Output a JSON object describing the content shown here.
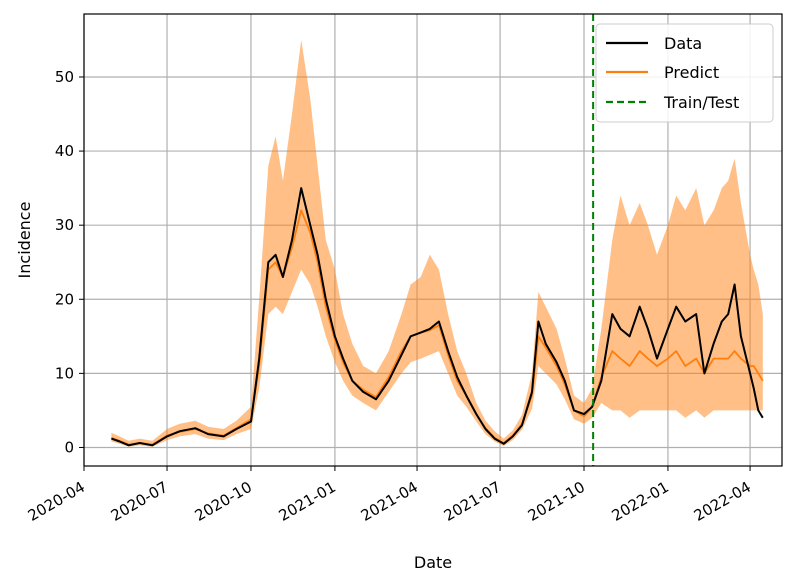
{
  "chart_data": {
    "type": "line",
    "title": "",
    "xlabel": "Date",
    "ylabel": "Incidence",
    "grid": true,
    "legend_position": "top-right",
    "ylim": [
      -2.5,
      58.5
    ],
    "xlim": [
      "2020-04-01",
      "2022-05-06"
    ],
    "x_ticks": [
      "2020-04",
      "2020-07",
      "2020-10",
      "2021-01",
      "2021-04",
      "2021-07",
      "2021-10",
      "2022-01",
      "2022-04"
    ],
    "x_tick_dates": [
      "2020-04-01",
      "2020-07-01",
      "2020-10-01",
      "2021-01-01",
      "2021-04-01",
      "2021-07-01",
      "2021-10-01",
      "2022-01-01",
      "2022-04-01"
    ],
    "y_ticks": [
      0,
      10,
      20,
      30,
      40,
      50
    ],
    "train_test_split": "2021-10-11",
    "series": [
      {
        "name": "Data",
        "color": "#000000",
        "style": "solid",
        "dates": [
          "2020-05-01",
          "2020-05-10",
          "2020-05-20",
          "2020-06-01",
          "2020-06-15",
          "2020-07-01",
          "2020-07-15",
          "2020-08-01",
          "2020-08-15",
          "2020-09-01",
          "2020-09-15",
          "2020-10-01",
          "2020-10-10",
          "2020-10-20",
          "2020-10-28",
          "2020-11-05",
          "2020-11-15",
          "2020-11-25",
          "2020-12-05",
          "2020-12-13",
          "2020-12-22",
          "2021-01-01",
          "2021-01-10",
          "2021-01-20",
          "2021-02-01",
          "2021-02-15",
          "2021-03-01",
          "2021-03-15",
          "2021-03-25",
          "2021-04-05",
          "2021-04-15",
          "2021-04-25",
          "2021-05-05",
          "2021-05-15",
          "2021-05-25",
          "2021-06-05",
          "2021-06-15",
          "2021-06-25",
          "2021-07-05",
          "2021-07-15",
          "2021-07-25",
          "2021-08-05",
          "2021-08-12",
          "2021-08-20",
          "2021-09-01",
          "2021-09-10",
          "2021-09-20",
          "2021-10-01",
          "2021-10-10",
          "2021-10-20",
          "2021-11-01",
          "2021-11-10",
          "2021-11-20",
          "2021-12-01",
          "2021-12-10",
          "2021-12-20",
          "2022-01-01",
          "2022-01-10",
          "2022-01-20",
          "2022-02-01",
          "2022-02-10",
          "2022-02-20",
          "2022-03-01",
          "2022-03-08",
          "2022-03-15",
          "2022-03-22",
          "2022-04-01",
          "2022-04-05",
          "2022-04-10",
          "2022-04-15"
        ],
        "values": [
          1.2,
          0.8,
          0.3,
          0.6,
          0.3,
          1.5,
          2.2,
          2.6,
          1.8,
          1.5,
          2.5,
          3.5,
          12,
          25,
          26,
          23,
          28,
          35,
          30,
          26,
          20,
          15,
          12,
          9,
          7.5,
          6.5,
          9,
          12.5,
          15,
          15.5,
          16,
          17,
          13,
          9.5,
          7,
          4.5,
          2.5,
          1.2,
          0.5,
          1.5,
          3,
          7.5,
          17,
          14,
          11.5,
          9,
          5,
          4.5,
          5.5,
          9,
          18,
          16,
          15,
          19,
          16,
          12,
          16,
          19,
          17,
          18,
          10,
          14,
          17,
          18,
          22,
          15,
          10,
          8,
          5,
          4
        ]
      },
      {
        "name": "Predict",
        "color": "#ff7f0e",
        "style": "solid",
        "dates": [
          "2020-05-01",
          "2020-05-10",
          "2020-05-20",
          "2020-06-01",
          "2020-06-15",
          "2020-07-01",
          "2020-07-15",
          "2020-08-01",
          "2020-08-15",
          "2020-09-01",
          "2020-09-15",
          "2020-10-01",
          "2020-10-10",
          "2020-10-20",
          "2020-10-28",
          "2020-11-05",
          "2020-11-15",
          "2020-11-25",
          "2020-12-05",
          "2020-12-13",
          "2020-12-22",
          "2021-01-01",
          "2021-01-10",
          "2021-01-20",
          "2021-02-01",
          "2021-02-15",
          "2021-03-01",
          "2021-03-15",
          "2021-03-25",
          "2021-04-05",
          "2021-04-15",
          "2021-04-25",
          "2021-05-05",
          "2021-05-15",
          "2021-05-25",
          "2021-06-05",
          "2021-06-15",
          "2021-06-25",
          "2021-07-05",
          "2021-07-15",
          "2021-07-25",
          "2021-08-05",
          "2021-08-12",
          "2021-08-20",
          "2021-09-01",
          "2021-09-10",
          "2021-09-20",
          "2021-10-01",
          "2021-10-10",
          "2021-10-20",
          "2021-11-01",
          "2021-11-10",
          "2021-11-20",
          "2021-12-01",
          "2021-12-10",
          "2021-12-20",
          "2022-01-01",
          "2022-01-10",
          "2022-01-20",
          "2022-02-01",
          "2022-02-10",
          "2022-02-20",
          "2022-03-01",
          "2022-03-08",
          "2022-03-15",
          "2022-03-22",
          "2022-04-01",
          "2022-04-05",
          "2022-04-10",
          "2022-04-15"
        ],
        "values": [
          1.3,
          0.9,
          0.4,
          0.6,
          0.4,
          1.6,
          2.1,
          2.5,
          1.9,
          1.6,
          2.6,
          3.8,
          11,
          24,
          25,
          23,
          27,
          32,
          29,
          25,
          19,
          14.5,
          11.5,
          9,
          7.8,
          6.8,
          9.5,
          13,
          15,
          15.5,
          15.8,
          16.5,
          12.5,
          9,
          7,
          4.5,
          2.6,
          1.3,
          0.6,
          1.6,
          3.2,
          7,
          15,
          13.5,
          11,
          8.5,
          5,
          4.2,
          5.5,
          9.5,
          13,
          12,
          11,
          13,
          12,
          11,
          12,
          13,
          11,
          12,
          10,
          12,
          12,
          12,
          13,
          12,
          11,
          11,
          10,
          9
        ]
      }
    ],
    "prediction_band": {
      "name": "Predict range",
      "dates": [
        "2020-05-01",
        "2020-05-10",
        "2020-05-20",
        "2020-06-01",
        "2020-06-15",
        "2020-07-01",
        "2020-07-15",
        "2020-08-01",
        "2020-08-15",
        "2020-09-01",
        "2020-09-15",
        "2020-10-01",
        "2020-10-10",
        "2020-10-20",
        "2020-10-28",
        "2020-11-05",
        "2020-11-15",
        "2020-11-25",
        "2020-12-05",
        "2020-12-13",
        "2020-12-22",
        "2021-01-01",
        "2021-01-10",
        "2021-01-20",
        "2021-02-01",
        "2021-02-15",
        "2021-03-01",
        "2021-03-15",
        "2021-03-25",
        "2021-04-05",
        "2021-04-15",
        "2021-04-25",
        "2021-05-05",
        "2021-05-15",
        "2021-05-25",
        "2021-06-05",
        "2021-06-15",
        "2021-06-25",
        "2021-07-05",
        "2021-07-15",
        "2021-07-25",
        "2021-08-05",
        "2021-08-12",
        "2021-08-20",
        "2021-09-01",
        "2021-09-10",
        "2021-09-20",
        "2021-10-01",
        "2021-10-10",
        "2021-10-20",
        "2021-11-01",
        "2021-11-10",
        "2021-11-20",
        "2021-12-01",
        "2021-12-10",
        "2021-12-20",
        "2022-01-01",
        "2022-01-10",
        "2022-01-20",
        "2022-02-01",
        "2022-02-10",
        "2022-02-20",
        "2022-03-01",
        "2022-03-08",
        "2022-03-15",
        "2022-03-22",
        "2022-04-01",
        "2022-04-05",
        "2022-04-10",
        "2022-04-15"
      ],
      "lower": [
        0.8,
        0.5,
        0.1,
        0.3,
        0.1,
        1.0,
        1.5,
        1.8,
        1.2,
        1.0,
        1.8,
        2.5,
        8,
        18,
        19,
        18,
        21,
        24,
        22,
        19,
        15,
        11.5,
        9,
        7,
        6,
        5,
        7.5,
        10,
        11.5,
        12,
        12.5,
        13,
        10,
        7,
        5.5,
        3.5,
        1.8,
        0.8,
        0.2,
        1.0,
        2.4,
        5.2,
        11,
        10,
        8.5,
        6.5,
        3.8,
        3.2,
        4,
        6,
        5,
        5,
        4,
        5,
        5,
        5,
        5,
        5,
        4,
        5,
        4,
        5,
        5,
        5,
        5,
        5,
        5,
        5,
        5,
        5
      ],
      "upper": [
        2.0,
        1.5,
        0.9,
        1.2,
        0.9,
        2.5,
        3.2,
        3.6,
        2.8,
        2.5,
        3.6,
        5.5,
        20,
        38,
        42,
        36,
        45,
        55,
        47,
        38,
        28,
        24,
        18,
        14,
        11,
        10,
        13,
        18,
        22,
        23,
        26,
        24,
        18,
        13,
        10,
        6,
        3.6,
        2.2,
        1.2,
        2.3,
        4.4,
        10,
        21,
        19,
        16,
        12,
        7,
        6,
        8,
        16,
        28,
        34,
        30,
        33,
        30,
        26,
        30,
        34,
        32,
        35,
        30,
        32,
        35,
        36,
        39,
        33,
        26,
        24,
        22,
        18
      ]
    },
    "legend": [
      {
        "label": "Data",
        "color": "#000000",
        "style": "solid"
      },
      {
        "label": "Predict",
        "color": "#ff7f0e",
        "style": "solid"
      },
      {
        "label": "Train/Test",
        "color": "#008000",
        "style": "dashed"
      }
    ]
  }
}
